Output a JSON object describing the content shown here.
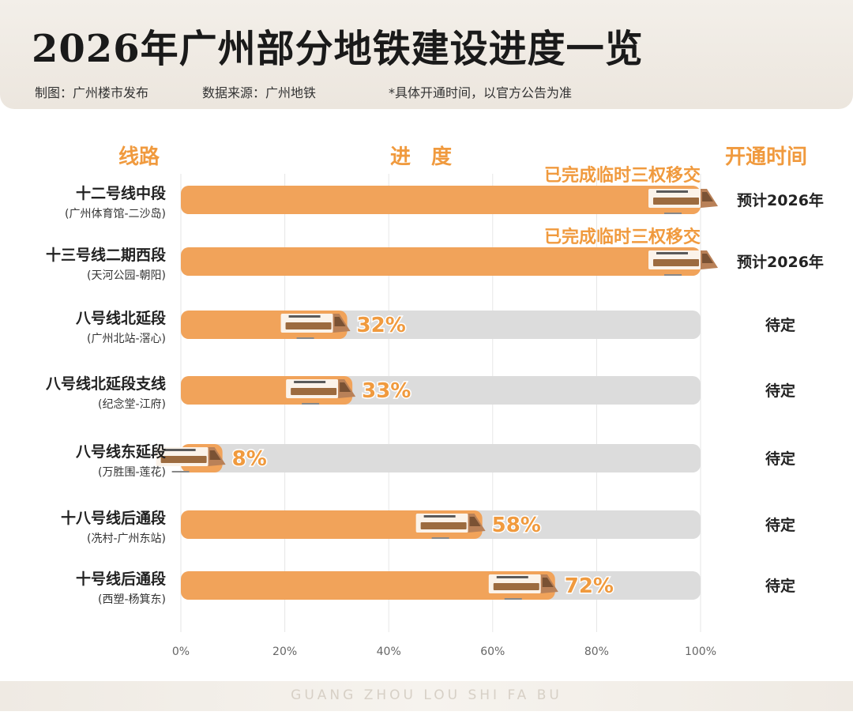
{
  "header": {
    "title": "2026年广州部分地铁建设进度一览",
    "credit": "制图：广州楼市发布",
    "source": "数据来源：广州地铁",
    "note": "*具体开通时间，以官方公告为准"
  },
  "columns": {
    "line": "线路",
    "progress": "进　度",
    "opening": "开通时间"
  },
  "footer": {
    "text": "GUANG ZHOU LOU SHI FA BU"
  },
  "colors": {
    "bar_fill": "#f1a35a",
    "bar_track": "#dcdcdc",
    "label_accent": "#f09a3e",
    "grid": "#e6e6e6"
  },
  "chart_data": {
    "type": "bar",
    "orientation": "horizontal",
    "xlim": [
      0,
      100
    ],
    "ticks": [
      "0%",
      "20%",
      "40%",
      "60%",
      "80%",
      "100%"
    ],
    "rows": [
      {
        "name": "十二号线中段",
        "sub": "(广州体育馆-二沙岛)",
        "value": 100,
        "label": "已完成临时三权移交",
        "opening": "预计2026年"
      },
      {
        "name": "十三号线二期西段",
        "sub": "(天河公园-朝阳)",
        "value": 100,
        "label": "已完成临时三权移交",
        "opening": "预计2026年"
      },
      {
        "name": "八号线北延段",
        "sub": "(广州北站-滘心)",
        "value": 32,
        "label": "32%",
        "opening": "待定"
      },
      {
        "name": "八号线北延段支线",
        "sub": "(纪念堂-江府)",
        "value": 33,
        "label": "33%",
        "opening": "待定"
      },
      {
        "name": "八号线东延段",
        "sub": "(万胜围-莲花)",
        "value": 8,
        "label": "8%",
        "opening": "待定"
      },
      {
        "name": "十八号线后通段",
        "sub": "(冼村-广州东站)",
        "value": 58,
        "label": "58%",
        "opening": "待定"
      },
      {
        "name": "十号线后通段",
        "sub": "(西塑-杨箕东)",
        "value": 72,
        "label": "72%",
        "opening": "待定"
      }
    ],
    "icon": "train-icon"
  }
}
